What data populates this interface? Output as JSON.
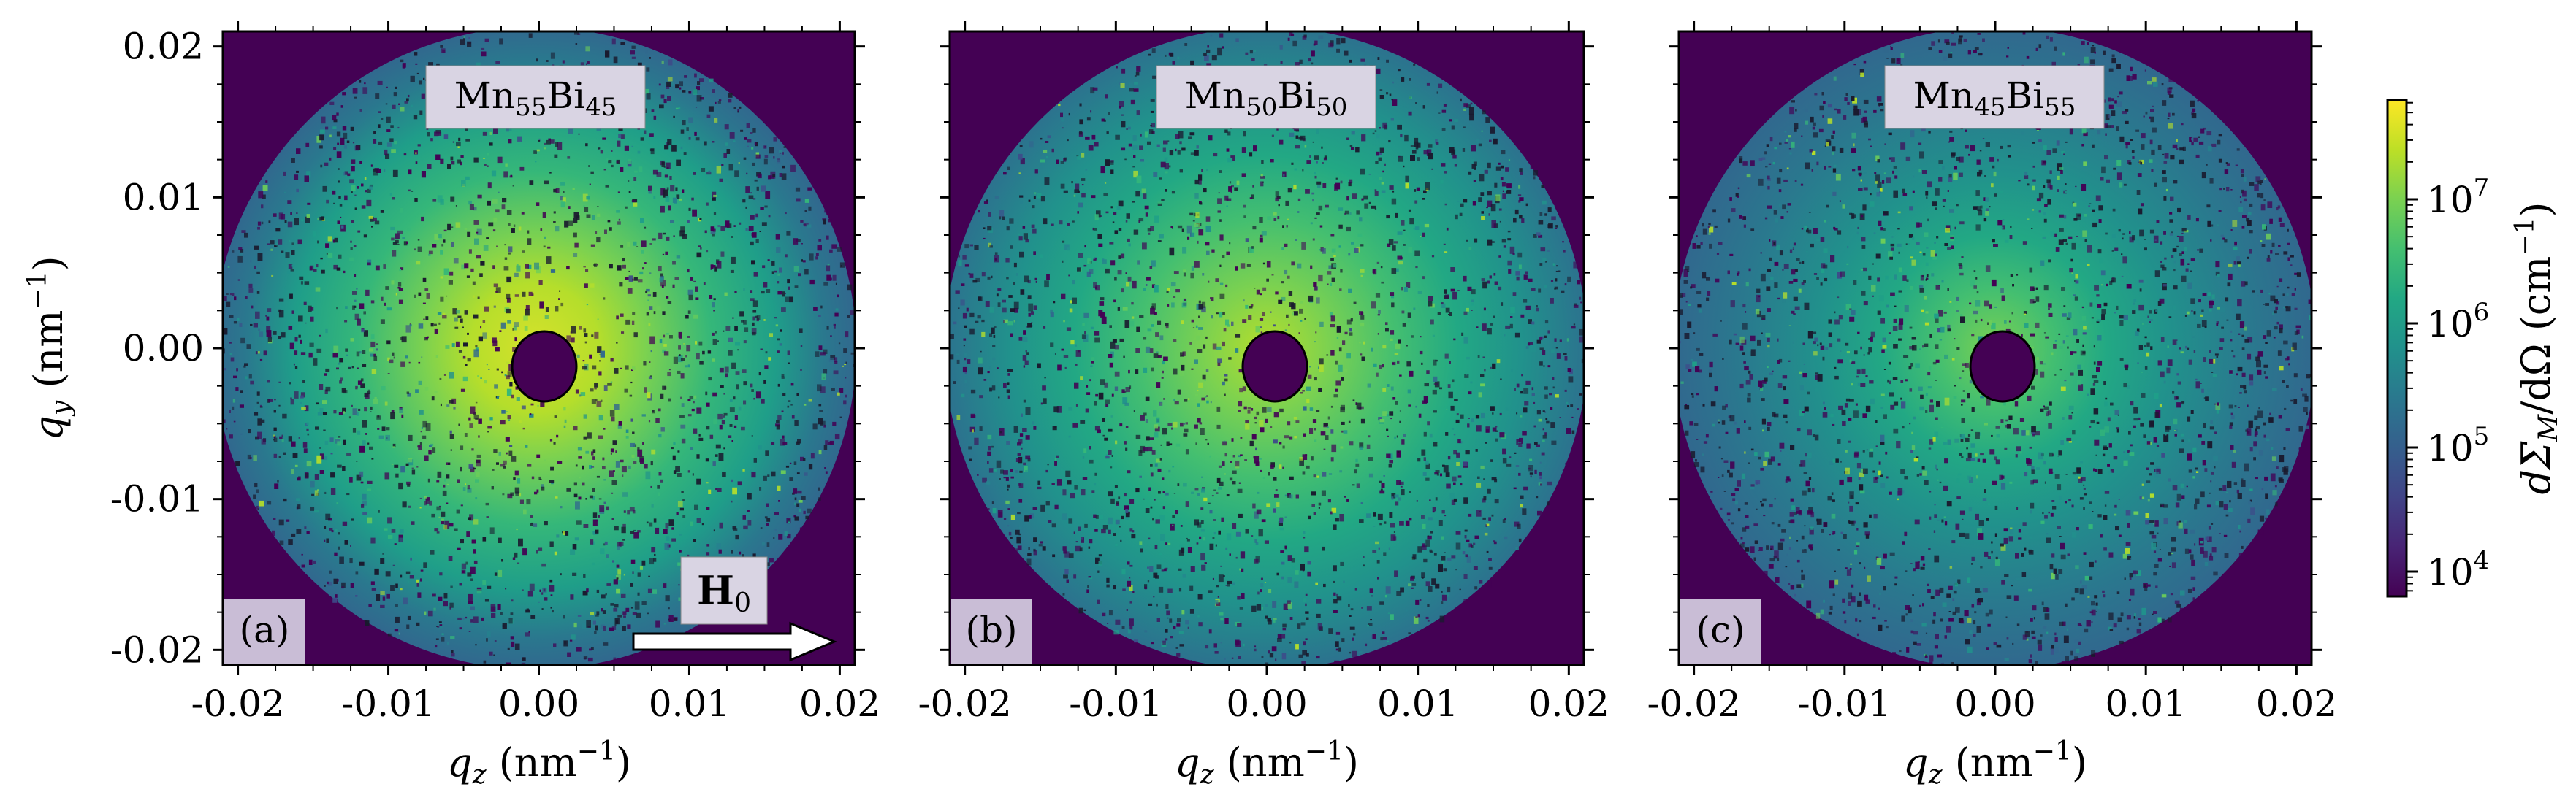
{
  "chart_data": {
    "type": "heatmap",
    "panels": [
      {
        "id": "a",
        "label": "(a)",
        "title_base": "Mn",
        "title_sub1": "55",
        "title_mid": "Bi",
        "title_sub2": "45",
        "xlabel": "q",
        "xlabel_sub": "z",
        "xlabel_unit": " (nm",
        "xlabel_sup": "−1",
        "xlabel_close": ")",
        "ylabel": "q",
        "ylabel_sub": "y",
        "ylabel_unit": " (nm",
        "ylabel_sup": "−1",
        "ylabel_close": ")",
        "xlim": [
          -0.021,
          0.021
        ],
        "ylim": [
          -0.021,
          0.021
        ],
        "xticks": [
          "-0.02",
          "-0.01",
          "0.00",
          "0.01",
          "0.02"
        ],
        "yticks": [
          "0.02",
          "0.01",
          "0.00",
          "-0.01",
          "-0.02"
        ],
        "peak_log_intensity": 7.4,
        "ring_radius_nm": 0.004,
        "beamstop_radius_nm": 0.002,
        "outer_radius_nm": 0.0205,
        "field_label": "H",
        "field_sub": "0"
      },
      {
        "id": "b",
        "label": "(b)",
        "title_base": "Mn",
        "title_sub1": "50",
        "title_mid": "Bi",
        "title_sub2": "50",
        "xlabel": "q",
        "xlabel_sub": "z",
        "xlabel_unit": " (nm",
        "xlabel_sup": "−1",
        "xlabel_close": ")",
        "xlim": [
          -0.021,
          0.021
        ],
        "ylim": [
          -0.021,
          0.021
        ],
        "xticks": [
          "-0.02",
          "-0.01",
          "0.00",
          "0.01",
          "0.02"
        ],
        "peak_log_intensity": 7.0,
        "ring_radius_nm": 0.0035,
        "beamstop_radius_nm": 0.002,
        "outer_radius_nm": 0.0205
      },
      {
        "id": "c",
        "label": "(c)",
        "title_base": "Mn",
        "title_sub1": "45",
        "title_mid": "Bi",
        "title_sub2": "55",
        "xlabel": "q",
        "xlabel_sub": "z",
        "xlabel_unit": " (nm",
        "xlabel_sup": "−1",
        "xlabel_close": ")",
        "xlim": [
          -0.021,
          0.021
        ],
        "ylim": [
          -0.021,
          0.021
        ],
        "xticks": [
          "-0.02",
          "-0.01",
          "0.00",
          "0.01",
          "0.02"
        ],
        "peak_log_intensity": 6.6,
        "ring_radius_nm": 0.003,
        "beamstop_radius_nm": 0.002,
        "outer_radius_nm": 0.0205
      }
    ],
    "colorbar": {
      "scale": "log",
      "range_log10": [
        3.8,
        7.8
      ],
      "ticks": [
        {
          "base": "10",
          "exp": "4",
          "log": 4
        },
        {
          "base": "10",
          "exp": "5",
          "log": 5
        },
        {
          "base": "10",
          "exp": "6",
          "log": 6
        },
        {
          "base": "10",
          "exp": "7",
          "log": 7
        }
      ],
      "label_main": "dΣ",
      "label_sub": "M",
      "label_rest": "/dΩ (cm",
      "label_sup": "−1",
      "label_close": ")"
    }
  },
  "colors": {
    "background": "#440154",
    "badge": "#d9d4e3",
    "label_box": "#c9bdd6"
  }
}
